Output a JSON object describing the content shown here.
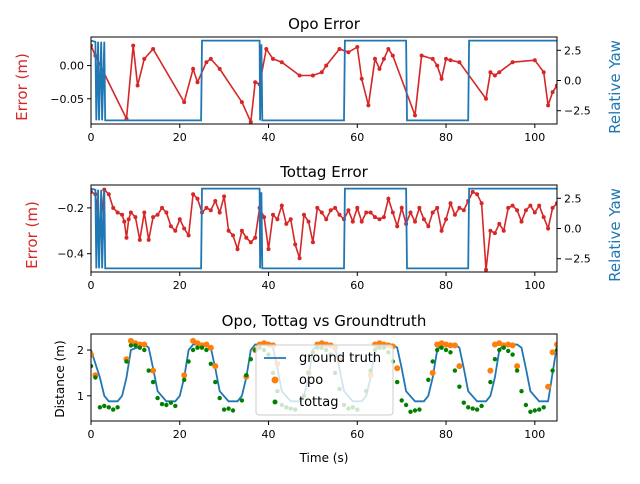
{
  "colors": {
    "error": "#d62728",
    "yaw": "#1f77b4",
    "opo": "#ff7f0e",
    "tottag": "#008000",
    "axis": "#000000"
  },
  "chart_data": [
    {
      "type": "line",
      "title": "Opo Error",
      "xlabel": "",
      "ylabel": "Error (m)",
      "y2label": "Relative Yaw",
      "xlim": [
        0,
        105
      ],
      "ylim": [
        -0.088,
        0.043
      ],
      "y2lim": [
        -3.6,
        3.6
      ],
      "xticks": [
        0,
        20,
        40,
        60,
        80,
        100
      ],
      "yticks": [
        -0.05,
        0.0
      ],
      "ytick_labels": [
        "−0.05",
        "0.00"
      ],
      "y2ticks": [
        -2.5,
        0.0,
        2.5
      ],
      "y2tick_labels": [
        "−2.5",
        "0.0",
        "2.5"
      ],
      "series": [
        {
          "role": "error",
          "style": "line-markers",
          "x": [
            0,
            1,
            8,
            9.5,
            10.5,
            12,
            14,
            21,
            23,
            24,
            26,
            27,
            29,
            34,
            36,
            37,
            38,
            39.5,
            41,
            43,
            47,
            50,
            52,
            53,
            56,
            58,
            60,
            61,
            62.5,
            64,
            65,
            66,
            67,
            68,
            73,
            74.5,
            77,
            78,
            79,
            80,
            81,
            83,
            89,
            90,
            91,
            92,
            95,
            100,
            102,
            103,
            104,
            105
          ],
          "y": [
            0.03,
            0.015,
            -0.08,
            0.03,
            -0.03,
            0.01,
            0.025,
            -0.055,
            -0.005,
            -0.025,
            0.005,
            0.01,
            -0.005,
            -0.055,
            -0.085,
            -0.025,
            -0.028,
            0.025,
            0.01,
            0.005,
            -0.015,
            -0.015,
            -0.01,
            0.0,
            0.025,
            0.02,
            0.028,
            -0.02,
            -0.06,
            0.01,
            -0.005,
            0.01,
            0.025,
            0.015,
            -0.075,
            0.015,
            0.01,
            0.0,
            -0.02,
            0.01,
            0.008,
            0.005,
            -0.05,
            -0.01,
            -0.015,
            -0.01,
            0.005,
            0.008,
            -0.01,
            -0.06,
            -0.04,
            -0.03
          ]
        },
        {
          "role": "yaw",
          "style": "line",
          "x": [
            0,
            1,
            1.2,
            1.6,
            1.8,
            2.3,
            2.5,
            3.0,
            3.2,
            3.4,
            24.8,
            25.0,
            38.0,
            38.1,
            38.4,
            38.6,
            57.0,
            57.2,
            71.0,
            71.2,
            85.0,
            85.2,
            105
          ],
          "y": [
            3.3,
            3.2,
            -3.3,
            3.2,
            -3.3,
            3.2,
            -3.3,
            3.2,
            -3.3,
            -3.3,
            -3.3,
            3.3,
            3.3,
            -3.3,
            3.0,
            -3.3,
            -3.3,
            3.3,
            3.3,
            -3.3,
            -3.3,
            3.3,
            3.3
          ]
        }
      ]
    },
    {
      "type": "line",
      "title": "Tottag Error",
      "xlabel": "",
      "ylabel": "Error (m)",
      "y2label": "Relative Yaw",
      "xlim": [
        0,
        105
      ],
      "ylim": [
        -0.48,
        -0.1
      ],
      "y2lim": [
        -3.6,
        3.6
      ],
      "xticks": [
        0,
        20,
        40,
        60,
        80,
        100
      ],
      "yticks": [
        -0.4,
        -0.2
      ],
      "ytick_labels": [
        "−0.4",
        "−0.2"
      ],
      "y2ticks": [
        -2.5,
        0.0,
        2.5
      ],
      "y2tick_labels": [
        "−2.5",
        "0.0",
        "2.5"
      ],
      "series": [
        {
          "role": "error",
          "style": "line-markers",
          "x": [
            0,
            1,
            2,
            3,
            4,
            5,
            6,
            7,
            7.5,
            8,
            8.5,
            9,
            10,
            11,
            12,
            13,
            14,
            15,
            16,
            17,
            18,
            19,
            20,
            21,
            22,
            23,
            24,
            25,
            26,
            27,
            28,
            29,
            30,
            31,
            32,
            33,
            34,
            35,
            36,
            37,
            38,
            39,
            40,
            41,
            42,
            43,
            44,
            45,
            46,
            47,
            48,
            49,
            50,
            51,
            52,
            53,
            54,
            55,
            56,
            57,
            58,
            59,
            60,
            61,
            62,
            63,
            64,
            65,
            66,
            67,
            68,
            69,
            70,
            71,
            72,
            73,
            74,
            75,
            76,
            77,
            78,
            79,
            80,
            81,
            82,
            83,
            84,
            85,
            86,
            87,
            88,
            89,
            90,
            91,
            92,
            93,
            94,
            95,
            96,
            97,
            98,
            99,
            100,
            101,
            102,
            103,
            104,
            105
          ],
          "y": [
            -0.13,
            -0.14,
            -0.3,
            -0.12,
            -0.14,
            -0.2,
            -0.22,
            -0.23,
            -0.26,
            -0.33,
            -0.25,
            -0.22,
            -0.24,
            -0.34,
            -0.22,
            -0.34,
            -0.24,
            -0.23,
            -0.2,
            -0.22,
            -0.28,
            -0.3,
            -0.25,
            -0.29,
            -0.32,
            -0.14,
            -0.16,
            -0.22,
            -0.2,
            -0.21,
            -0.17,
            -0.22,
            -0.15,
            -0.3,
            -0.32,
            -0.38,
            -0.3,
            -0.33,
            -0.35,
            -0.33,
            -0.2,
            -0.24,
            -0.38,
            -0.23,
            -0.25,
            -0.19,
            -0.27,
            -0.25,
            -0.36,
            -0.42,
            -0.23,
            -0.26,
            -0.35,
            -0.2,
            -0.22,
            -0.25,
            -0.21,
            -0.2,
            -0.23,
            -0.25,
            -0.21,
            -0.26,
            -0.2,
            -0.26,
            -0.22,
            -0.22,
            -0.24,
            -0.25,
            -0.24,
            -0.16,
            -0.22,
            -0.28,
            -0.2,
            -0.27,
            -0.22,
            -0.26,
            -0.2,
            -0.25,
            -0.28,
            -0.22,
            -0.2,
            -0.3,
            -0.25,
            -0.18,
            -0.23,
            -0.2,
            -0.21,
            -0.17,
            -0.13,
            -0.14,
            -0.18,
            -0.47,
            -0.3,
            -0.31,
            -0.27,
            -0.3,
            -0.2,
            -0.19,
            -0.21,
            -0.26,
            -0.21,
            -0.19,
            -0.22,
            -0.19,
            -0.24,
            -0.29,
            -0.2,
            -0.18
          ]
        },
        {
          "role": "yaw",
          "style": "line",
          "x": [
            0,
            1,
            1.2,
            1.6,
            1.8,
            2.3,
            2.5,
            3.0,
            3.2,
            3.4,
            24.8,
            25.0,
            38.0,
            38.1,
            38.4,
            38.6,
            57.0,
            57.2,
            71.0,
            71.2,
            85.0,
            85.2,
            105
          ],
          "y": [
            3.3,
            3.2,
            -3.3,
            3.2,
            -3.3,
            3.2,
            -3.3,
            3.2,
            -3.3,
            -3.3,
            -3.3,
            3.3,
            3.3,
            -3.3,
            3.0,
            -3.3,
            -3.3,
            3.3,
            3.3,
            -3.3,
            -3.3,
            3.3,
            3.3
          ]
        }
      ]
    },
    {
      "type": "line",
      "title": "Opo, Tottag vs Groundtruth",
      "xlabel": "Time (s)",
      "ylabel": "Distance (m)",
      "xlim": [
        0,
        105
      ],
      "ylim": [
        0.45,
        2.35
      ],
      "xticks": [
        0,
        20,
        40,
        60,
        80,
        100
      ],
      "yticks": [
        1,
        2
      ],
      "legend": "center",
      "series": [
        {
          "name": "ground truth",
          "role": "groundtruth",
          "style": "line",
          "x": [
            0,
            2,
            3,
            4,
            6,
            7,
            8,
            9,
            12,
            13,
            14,
            15,
            17,
            19,
            20,
            21,
            22,
            23,
            26,
            27,
            28,
            29,
            31,
            33,
            34,
            35,
            36,
            37,
            40,
            41,
            42,
            43,
            45,
            47,
            48,
            49,
            50,
            51,
            54,
            55,
            56,
            57,
            59,
            61,
            62,
            63,
            64,
            65,
            68,
            69,
            70,
            71,
            73,
            75,
            76,
            77,
            78,
            79,
            82,
            83,
            84,
            85,
            87,
            89,
            90,
            91,
            92,
            93,
            96,
            97,
            98,
            99,
            101,
            103,
            104,
            105
          ],
          "y": [
            2.0,
            1.4,
            1.0,
            0.88,
            0.88,
            1.0,
            1.4,
            2.0,
            2.12,
            2.05,
            1.6,
            1.1,
            0.88,
            0.88,
            1.0,
            1.4,
            2.0,
            2.12,
            2.12,
            2.05,
            1.6,
            1.1,
            0.88,
            0.88,
            1.0,
            1.4,
            2.0,
            2.12,
            2.12,
            2.05,
            1.6,
            1.1,
            0.88,
            0.88,
            1.0,
            1.4,
            2.0,
            2.12,
            2.12,
            2.05,
            1.6,
            1.1,
            0.88,
            0.88,
            1.0,
            1.4,
            2.0,
            2.12,
            2.12,
            2.05,
            1.6,
            1.1,
            0.88,
            0.88,
            1.0,
            1.4,
            2.0,
            2.12,
            2.12,
            2.05,
            1.6,
            1.1,
            0.88,
            0.88,
            1.0,
            1.4,
            2.0,
            2.12,
            2.12,
            2.05,
            1.6,
            1.1,
            0.88,
            0.88,
            1.5,
            2.1
          ]
        },
        {
          "name": "opo",
          "role": "opo",
          "style": "markers",
          "x": [
            0,
            1,
            8,
            9,
            10,
            11,
            12,
            14,
            21,
            23,
            24,
            25,
            26,
            27,
            28,
            35,
            37,
            38,
            39,
            40,
            41,
            42,
            49,
            51,
            52,
            53,
            54,
            55,
            56,
            63,
            64,
            65,
            66,
            67,
            68,
            69,
            77,
            78,
            79,
            80,
            81,
            82,
            83,
            90,
            91,
            92,
            93,
            94,
            95,
            96,
            103,
            104,
            105
          ],
          "y": [
            1.9,
            1.45,
            1.8,
            2.2,
            2.15,
            2.12,
            2.12,
            1.55,
            1.45,
            2.2,
            2.15,
            2.1,
            2.12,
            2.05,
            1.65,
            1.42,
            2.0,
            2.12,
            2.15,
            2.12,
            2.1,
            1.7,
            1.5,
            2.12,
            2.15,
            2.12,
            2.1,
            2.05,
            1.8,
            1.45,
            2.12,
            2.15,
            2.12,
            2.1,
            2.08,
            1.6,
            1.5,
            2.12,
            2.15,
            2.12,
            2.1,
            2.1,
            1.65,
            1.55,
            2.12,
            2.15,
            2.1,
            2.12,
            2.1,
            1.65,
            1.2,
            1.95,
            2.12
          ]
        },
        {
          "name": "tottag",
          "role": "tottag",
          "style": "markers",
          "x": [
            0,
            1,
            2,
            3,
            4,
            5,
            6,
            8,
            9,
            10,
            11,
            12,
            13,
            14,
            15,
            16,
            17,
            18,
            19,
            21,
            22,
            23,
            24,
            25,
            26,
            27,
            28,
            29,
            30,
            31,
            32,
            34,
            35,
            36,
            37,
            38,
            39,
            40,
            41,
            42,
            43,
            44,
            45,
            46,
            48,
            49,
            50,
            51,
            52,
            53,
            54,
            55,
            56,
            57,
            58,
            59,
            60,
            62,
            63,
            64,
            65,
            66,
            67,
            68,
            69,
            70,
            71,
            72,
            73,
            74,
            76,
            77,
            78,
            79,
            80,
            81,
            82,
            83,
            84,
            85,
            86,
            87,
            88,
            90,
            91,
            92,
            93,
            94,
            95,
            96,
            97,
            98,
            99,
            100,
            101,
            102,
            104,
            105
          ],
          "y": [
            1.65,
            1.4,
            0.75,
            0.78,
            0.75,
            0.7,
            0.75,
            1.75,
            2.1,
            2.1,
            2.05,
            2.0,
            1.55,
            1.3,
            0.95,
            0.82,
            0.8,
            0.85,
            0.78,
            1.35,
            1.75,
            2.0,
            2.05,
            2.05,
            2.0,
            1.7,
            1.3,
            0.95,
            0.7,
            0.72,
            0.68,
            0.9,
            1.45,
            1.8,
            2.0,
            2.05,
            2.0,
            1.9,
            1.5,
            1.1,
            0.8,
            0.75,
            0.72,
            0.7,
            1.0,
            1.5,
            1.95,
            2.05,
            2.05,
            2.0,
            1.9,
            1.5,
            1.15,
            0.8,
            0.72,
            0.75,
            0.7,
            1.1,
            1.55,
            2.0,
            2.05,
            2.05,
            1.95,
            1.75,
            1.3,
            0.9,
            0.8,
            0.65,
            0.68,
            0.7,
            1.35,
            1.75,
            2.0,
            2.05,
            2.0,
            1.95,
            1.55,
            1.2,
            0.85,
            0.75,
            0.72,
            0.7,
            0.78,
            1.3,
            1.8,
            2.0,
            2.05,
            1.98,
            1.9,
            1.55,
            1.1,
            0.8,
            0.65,
            0.68,
            0.7,
            0.75,
            1.55,
            2.0
          ]
        }
      ]
    }
  ]
}
